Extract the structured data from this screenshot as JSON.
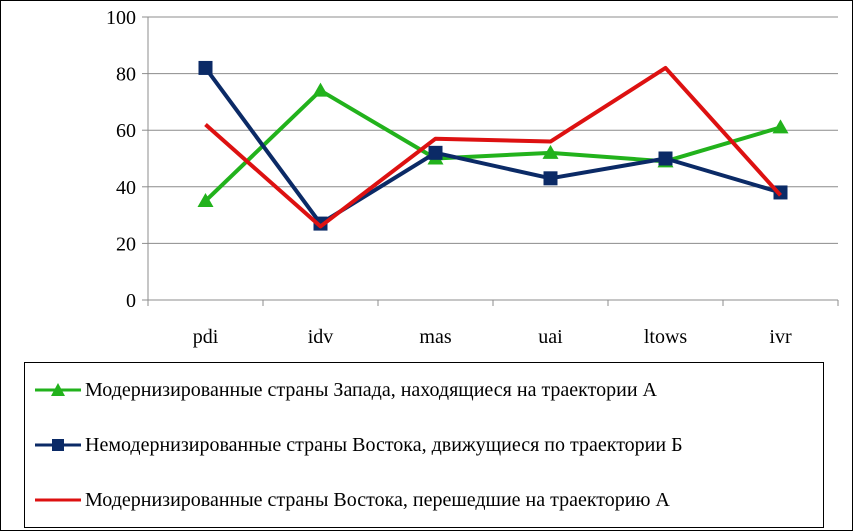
{
  "chart_data": {
    "type": "line",
    "categories": [
      "pdi",
      "idv",
      "mas",
      "uai",
      "ltows",
      "ivr"
    ],
    "ylim": [
      0,
      100
    ],
    "yticks": [
      0,
      20,
      40,
      60,
      80,
      100
    ],
    "grid": true,
    "legend_position": "bottom",
    "series": [
      {
        "name": "Модернизированные страны Запада, находящиеся на траектории А",
        "color": "#22b21c",
        "marker": "triangle",
        "values": [
          35,
          74,
          50,
          52,
          49,
          61
        ]
      },
      {
        "name": "Немодернизированные страны Востока, движущиеся по траектории Б",
        "color": "#0b2a66",
        "marker": "square",
        "values": [
          82,
          27,
          52,
          43,
          50,
          38
        ]
      },
      {
        "name": "Модернизированные страны Востока, перешедшие на траекторию А",
        "color": "#dd1111",
        "marker": "none",
        "values": [
          62,
          26,
          57,
          56,
          82,
          37
        ]
      }
    ]
  }
}
